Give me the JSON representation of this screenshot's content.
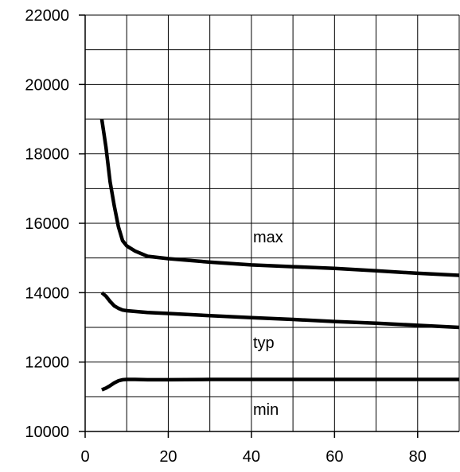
{
  "chart_data": {
    "type": "line",
    "title": "",
    "xlabel": "",
    "ylabel": "",
    "xlim": [
      0,
      90
    ],
    "ylim": [
      10000,
      22000
    ],
    "grid": true,
    "x_ticks": [
      0,
      20,
      40,
      60,
      80
    ],
    "y_ticks": [
      10000,
      12000,
      14000,
      16000,
      18000,
      20000,
      22000
    ],
    "x_tick_labels": [
      "0",
      "20",
      "40",
      "60",
      "80"
    ],
    "y_tick_labels": [
      "10000",
      "12000",
      "14000",
      "16000",
      "18000",
      "20000",
      "22000"
    ],
    "series": [
      {
        "name": "max",
        "x": [
          4,
          5,
          6,
          7,
          8,
          9,
          10,
          12,
          15,
          20,
          30,
          40,
          50,
          60,
          70,
          80,
          90
        ],
        "y": [
          19000,
          18200,
          17200,
          16500,
          15900,
          15500,
          15350,
          15200,
          15050,
          14980,
          14880,
          14800,
          14750,
          14700,
          14630,
          14560,
          14500
        ]
      },
      {
        "name": "typ",
        "x": [
          4,
          5,
          6,
          7,
          8,
          9,
          10,
          15,
          20,
          30,
          40,
          50,
          60,
          70,
          80,
          90
        ],
        "y": [
          14000,
          13900,
          13750,
          13620,
          13550,
          13500,
          13480,
          13430,
          13400,
          13340,
          13280,
          13230,
          13170,
          13120,
          13060,
          13000
        ]
      },
      {
        "name": "min",
        "x": [
          4,
          5,
          6,
          7,
          8,
          9,
          10,
          12,
          15,
          20,
          30,
          40,
          50,
          60,
          70,
          80,
          90
        ],
        "y": [
          11200,
          11250,
          11320,
          11400,
          11460,
          11490,
          11500,
          11500,
          11490,
          11490,
          11500,
          11500,
          11500,
          11500,
          11500,
          11500,
          11500
        ]
      }
    ],
    "line_color": "#000000"
  }
}
